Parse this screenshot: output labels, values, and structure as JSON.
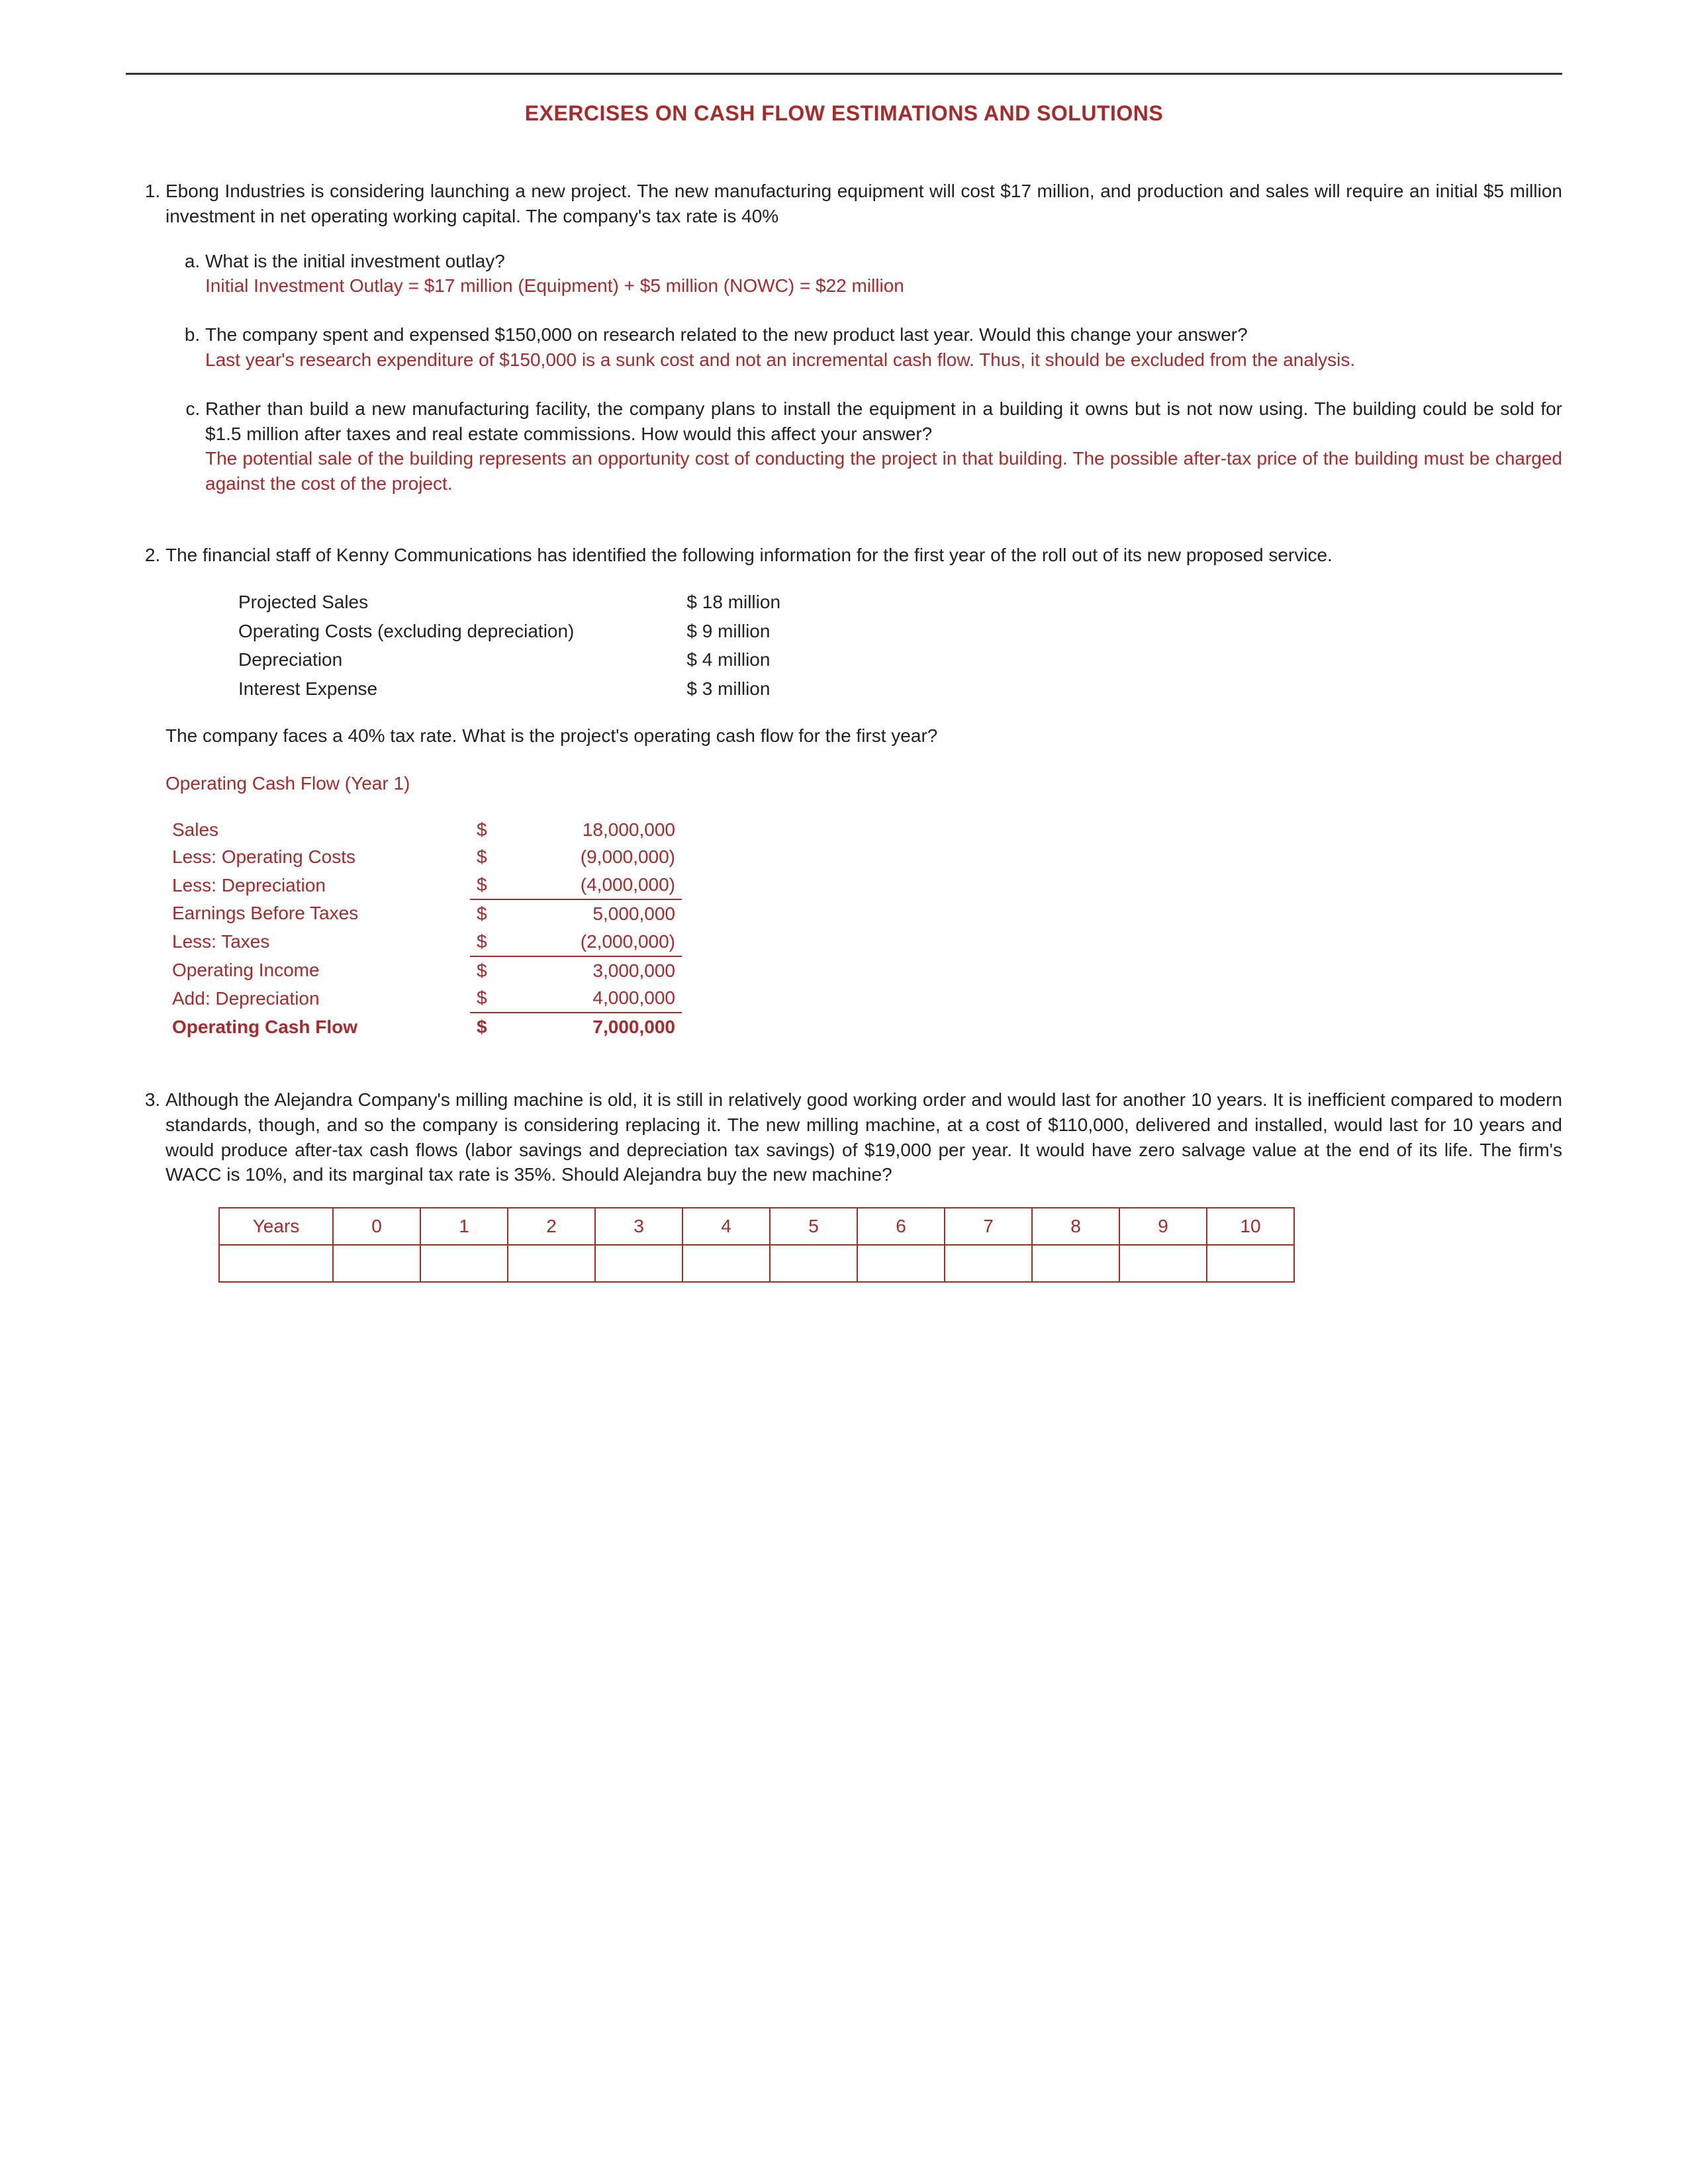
{
  "title": "EXERCISES ON CASH FLOW ESTIMATIONS AND SOLUTIONS",
  "colors": {
    "accent": "#a62b2b",
    "text": "#222222",
    "rule": "#333333"
  },
  "problems": [
    {
      "intro": "Ebong Industries is considering launching a new project. The new manufacturing equipment will cost $17 million, and production and sales will require an initial $5 million investment in net operating working capital. The company's tax rate is 40%",
      "subparts": [
        {
          "q": "What is the initial investment outlay?",
          "a": "Initial Investment Outlay = $17 million (Equipment) + $5 million (NOWC) = $22 million"
        },
        {
          "q": "The company spent and expensed $150,000 on research related to the new product last year. Would this change your answer?",
          "a": "Last year's research expenditure of $150,000 is a sunk cost and not an incremental cash flow. Thus, it should be excluded from the analysis."
        },
        {
          "q": "Rather than build a new manufacturing facility, the company plans to install the equipment in a building it owns but is not now using. The building could be sold for $1.5 million after taxes and real estate commissions. How would this affect your answer?",
          "a": "The potential sale of the building represents an opportunity cost of conducting the project in that building. The possible after-tax price of the building must be charged against the cost of the project."
        }
      ]
    },
    {
      "intro": "The financial staff of Kenny Communications has identified the following information for the first year of the roll out of its new proposed service.",
      "info_rows": [
        {
          "label": "Projected Sales",
          "value": "$ 18 million"
        },
        {
          "label": "Operating Costs (excluding depreciation)",
          "value": "$ 9 million"
        },
        {
          "label": "Depreciation",
          "value": "$ 4 million"
        },
        {
          "label": "Interest Expense",
          "value": "$ 3 million"
        }
      ],
      "followup": "The company faces a 40% tax rate. What is the project's operating cash flow for the first year?",
      "ocf_heading": "Operating Cash Flow (Year 1)",
      "calc_rows": [
        {
          "label": "Sales",
          "cur": "$",
          "num": "18,000,000",
          "uline": false,
          "bold": false
        },
        {
          "label": "Less: Operating Costs",
          "cur": "$",
          "num": "(9,000,000)",
          "uline": false,
          "bold": false
        },
        {
          "label": "Less: Depreciation",
          "cur": "$",
          "num": "(4,000,000)",
          "uline": true,
          "bold": false
        },
        {
          "label": "Earnings Before Taxes",
          "cur": "$",
          "num": "5,000,000",
          "uline": false,
          "bold": false
        },
        {
          "label": "Less: Taxes",
          "cur": "$",
          "num": "(2,000,000)",
          "uline": true,
          "bold": false
        },
        {
          "label": "Operating Income",
          "cur": "$",
          "num": "3,000,000",
          "uline": false,
          "bold": false
        },
        {
          "label": "Add: Depreciation",
          "cur": "$",
          "num": "4,000,000",
          "uline": true,
          "bold": false
        },
        {
          "label": "Operating Cash Flow",
          "cur": "$",
          "num": "7,000,000",
          "uline": false,
          "bold": true
        }
      ]
    },
    {
      "intro": "Although the Alejandra Company's milling machine is old, it is still in relatively good working order and would last for another 10 years. It is inefficient compared to modern standards, though, and so the company is considering replacing it. The new milling machine, at a cost of $110,000, delivered and installed, would last for 10 years and would produce after-tax cash flows (labor savings and depreciation tax savings) of $19,000 per year. It would have zero salvage value at the end of its life. The firm's WACC is 10%, and its marginal tax rate is 35%. Should Alejandra buy the new machine?",
      "years_header": "Years",
      "years": [
        "0",
        "1",
        "2",
        "3",
        "4",
        "5",
        "6",
        "7",
        "8",
        "9",
        "10"
      ]
    }
  ]
}
